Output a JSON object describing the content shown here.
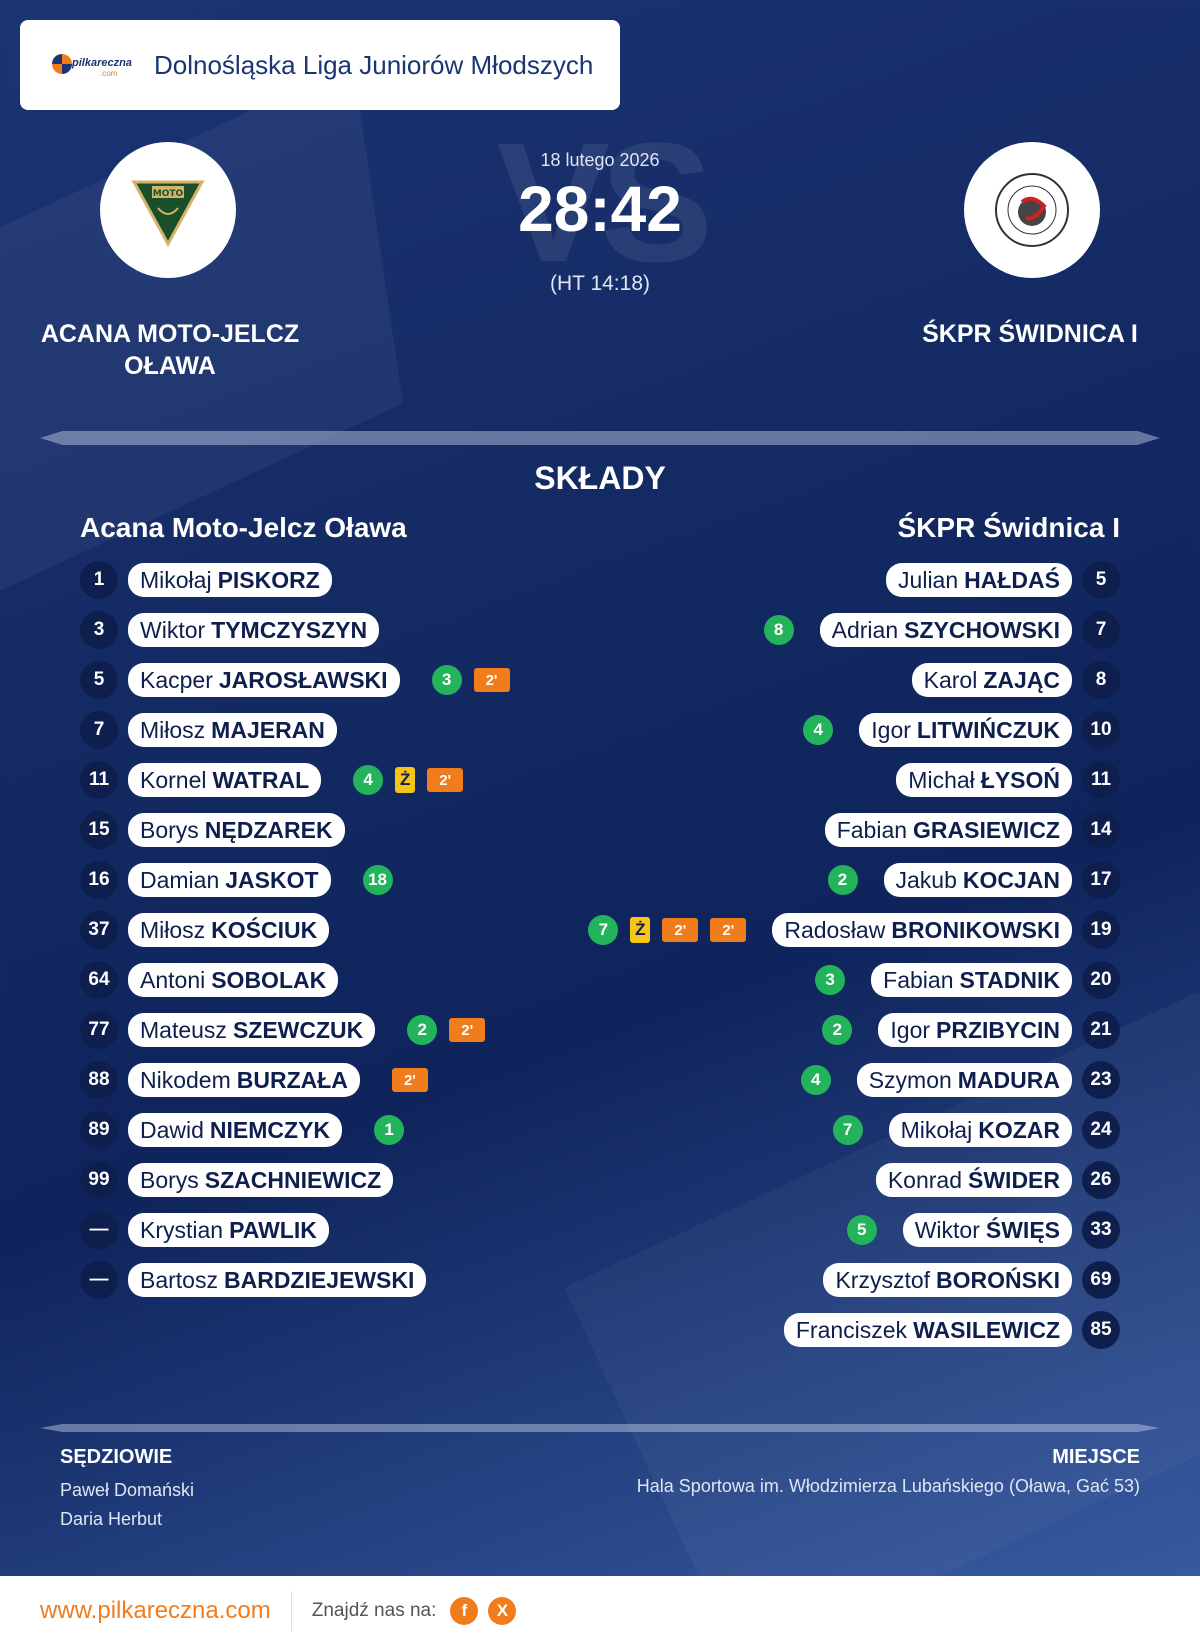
{
  "league": {
    "logo_text": "pilkareczna",
    "logo_sub": ".com",
    "name": "Dolnośląska Liga Juniorów Młodszych"
  },
  "match": {
    "date": "18 lutego 2026",
    "score": "28:42",
    "halftime": "(HT 14:18)",
    "vs": "VS"
  },
  "home": {
    "name": "ACANA MOTO-JELCZ OŁAWA",
    "lineup_title": "Acana Moto-Jelcz Oława",
    "logo_text": "MOTO",
    "players": [
      {
        "num": "1",
        "first": "Mikołaj",
        "last": "PISKORZ",
        "events": []
      },
      {
        "num": "3",
        "first": "Wiktor",
        "last": "TYMCZYSZYN",
        "events": []
      },
      {
        "num": "5",
        "first": "Kacper",
        "last": "JAROSŁAWSKI",
        "events": [
          {
            "type": "goal",
            "text": "3"
          },
          {
            "type": "susp",
            "text": "2'"
          }
        ]
      },
      {
        "num": "7",
        "first": "Miłosz",
        "last": "MAJERAN",
        "events": []
      },
      {
        "num": "11",
        "first": "Kornel",
        "last": "WATRAL",
        "events": [
          {
            "type": "goal",
            "text": "4"
          },
          {
            "type": "yellow",
            "text": "Ż"
          },
          {
            "type": "susp",
            "text": "2'"
          }
        ]
      },
      {
        "num": "15",
        "first": "Borys",
        "last": "NĘDZAREK",
        "events": []
      },
      {
        "num": "16",
        "first": "Damian",
        "last": "JASKOT",
        "events": [
          {
            "type": "goal",
            "text": "18"
          }
        ]
      },
      {
        "num": "37",
        "first": "Miłosz",
        "last": "KOŚCIUK",
        "events": []
      },
      {
        "num": "64",
        "first": "Antoni",
        "last": "SOBOLAK",
        "events": []
      },
      {
        "num": "77",
        "first": "Mateusz",
        "last": "SZEWCZUK",
        "events": [
          {
            "type": "goal",
            "text": "2"
          },
          {
            "type": "susp",
            "text": "2'"
          }
        ]
      },
      {
        "num": "88",
        "first": "Nikodem",
        "last": "BURZAŁA",
        "events": [
          {
            "type": "susp",
            "text": "2'"
          }
        ]
      },
      {
        "num": "89",
        "first": "Dawid",
        "last": "NIEMCZYK",
        "events": [
          {
            "type": "goal",
            "text": "1"
          }
        ]
      },
      {
        "num": "99",
        "first": "Borys",
        "last": "SZACHNIEWICZ",
        "events": []
      },
      {
        "num": "—",
        "first": "Krystian",
        "last": "PAWLIK",
        "events": []
      },
      {
        "num": "—",
        "first": "Bartosz",
        "last": "BARDZIEJEWSKI",
        "events": []
      }
    ]
  },
  "away": {
    "name": "ŚKPR ŚWIDNICA I",
    "lineup_title": "ŚKPR Świdnica I",
    "players": [
      {
        "num": "5",
        "first": "Julian",
        "last": "HAŁDAŚ",
        "events": []
      },
      {
        "num": "7",
        "first": "Adrian",
        "last": "SZYCHOWSKI",
        "events": [
          {
            "type": "goal",
            "text": "8"
          }
        ]
      },
      {
        "num": "8",
        "first": "Karol",
        "last": "ZAJĄC",
        "events": []
      },
      {
        "num": "10",
        "first": "Igor",
        "last": "LITWIŃCZUK",
        "events": [
          {
            "type": "goal",
            "text": "4"
          }
        ]
      },
      {
        "num": "11",
        "first": "Michał",
        "last": "ŁYSOŃ",
        "events": []
      },
      {
        "num": "14",
        "first": "Fabian",
        "last": "GRASIEWICZ",
        "events": []
      },
      {
        "num": "17",
        "first": "Jakub",
        "last": "KOCJAN",
        "events": [
          {
            "type": "goal",
            "text": "2"
          }
        ]
      },
      {
        "num": "19",
        "first": "Radosław",
        "last": "BRONIKOWSKI",
        "events": [
          {
            "type": "goal",
            "text": "7"
          },
          {
            "type": "yellow",
            "text": "Ż"
          },
          {
            "type": "susp",
            "text": "2'"
          },
          {
            "type": "susp",
            "text": "2'"
          }
        ]
      },
      {
        "num": "20",
        "first": "Fabian",
        "last": "STADNIK",
        "events": [
          {
            "type": "goal",
            "text": "3"
          }
        ]
      },
      {
        "num": "21",
        "first": "Igor",
        "last": "PRZIBYCIN",
        "events": [
          {
            "type": "goal",
            "text": "2"
          }
        ]
      },
      {
        "num": "23",
        "first": "Szymon",
        "last": "MADURA",
        "events": [
          {
            "type": "goal",
            "text": "4"
          }
        ]
      },
      {
        "num": "24",
        "first": "Mikołaj",
        "last": "KOZAR",
        "events": [
          {
            "type": "goal",
            "text": "7"
          }
        ]
      },
      {
        "num": "26",
        "first": "Konrad",
        "last": "ŚWIDER",
        "events": []
      },
      {
        "num": "33",
        "first": "Wiktor",
        "last": "ŚWIĘS",
        "events": [
          {
            "type": "goal",
            "text": "5"
          }
        ]
      },
      {
        "num": "69",
        "first": "Krzysztof",
        "last": "BOROŃSKI",
        "events": []
      },
      {
        "num": "85",
        "first": "Franciszek",
        "last": "WASILEWICZ",
        "events": []
      }
    ]
  },
  "section_title": "SKŁADY",
  "referees": {
    "label": "SĘDZIOWIE",
    "names": [
      "Paweł Domański",
      "Daria Herbut"
    ]
  },
  "venue": {
    "label": "MIEJSCE",
    "text": "Hala Sportowa im. Włodzimierza Lubańskiego (Oława, Gać 53)"
  },
  "footer": {
    "site": "www.pilkareczna.com",
    "find": "Znajdź nas na:",
    "facebook": "f",
    "x": "X"
  },
  "colors": {
    "accent": "#f07c1b",
    "goal": "#23b45b",
    "yellow": "#f5c518",
    "navy": "#0e1f4e"
  }
}
